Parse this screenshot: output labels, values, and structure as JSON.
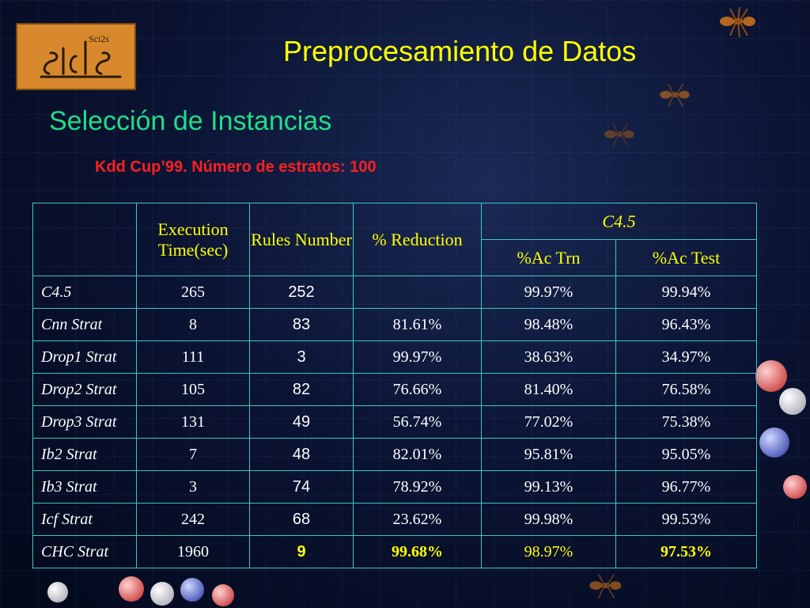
{
  "slide": {
    "title": "Preprocesamiento de Datos",
    "section_title": "Selección de Instancias",
    "subtitle": "Kdd Cup’99. Número de estratos: 100"
  },
  "logo": {
    "icon": "sci2s-logo",
    "text": "Sci2s"
  },
  "table": {
    "headers": {
      "execution": "Execution Time(sec)",
      "rules": "Rules Number",
      "reduction": "% Reduction",
      "group": "C4.5",
      "ac_trn": "%Ac Trn",
      "ac_test": "%Ac Test"
    },
    "rows": [
      {
        "name": "C4.5",
        "time": "265",
        "rules": "252",
        "reduction": "",
        "ac_trn": "99.97%",
        "ac_test": "99.94%"
      },
      {
        "name": "Cnn Strat",
        "time": "8",
        "rules": "83",
        "reduction": "81.61%",
        "ac_trn": "98.48%",
        "ac_test": "96.43%"
      },
      {
        "name": "Drop1 Strat",
        "time": "111",
        "rules": "3",
        "reduction": "99.97%",
        "ac_trn": "38.63%",
        "ac_test": "34.97%"
      },
      {
        "name": "Drop2 Strat",
        "time": "105",
        "rules": "82",
        "reduction": "76.66%",
        "ac_trn": "81.40%",
        "ac_test": "76.58%"
      },
      {
        "name": "Drop3 Strat",
        "time": "131",
        "rules": "49",
        "reduction": "56.74%",
        "ac_trn": "77.02%",
        "ac_test": "75.38%"
      },
      {
        "name": "Ib2 Strat",
        "time": "7",
        "rules": "48",
        "reduction": "82.01%",
        "ac_trn": "95.81%",
        "ac_test": "95.05%"
      },
      {
        "name": "Ib3 Strat",
        "time": "3",
        "rules": "74",
        "reduction": "78.92%",
        "ac_trn": "99.13%",
        "ac_test": "96.77%"
      },
      {
        "name": "Icf Strat",
        "time": "242",
        "rules": "68",
        "reduction": "23.62%",
        "ac_trn": "99.98%",
        "ac_test": "99.53%"
      },
      {
        "name": "CHC Strat",
        "time": "1960",
        "rules": "9",
        "reduction": "99.68%",
        "ac_trn": "98.97%",
        "ac_test": "97.53%"
      }
    ]
  },
  "colors": {
    "title": "#ffff00",
    "section_title": "#22dd88",
    "subtitle": "#ff2020",
    "table_border": "#3cc8c0",
    "highlight": "#ffff00"
  }
}
